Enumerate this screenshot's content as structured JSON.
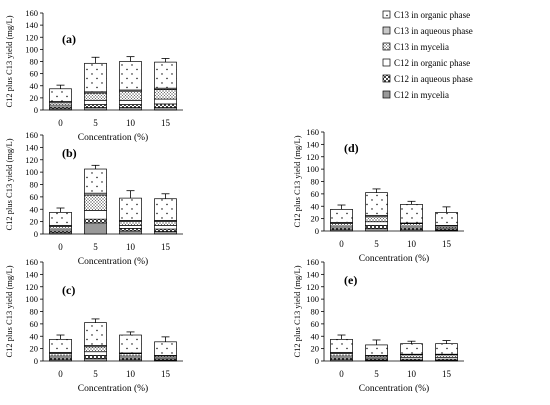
{
  "chart_data": [
    {
      "type": "bar",
      "stacked": true,
      "panel_label": "(a)",
      "categories": [
        "0",
        "5",
        "10",
        "15"
      ],
      "ylim": [
        0,
        160
      ],
      "yticks": [
        0,
        20,
        40,
        60,
        80,
        100,
        120,
        140,
        160
      ],
      "ylabel": "C12 plus C13 yield (mg/L)",
      "xlabel": "Concentration (%)",
      "series": [
        {
          "name": "C12 in mycelia",
          "values": [
            2,
            4,
            4,
            4
          ]
        },
        {
          "name": "C12 in aqueous phase",
          "values": [
            3,
            5,
            5,
            6
          ]
        },
        {
          "name": "C12 in organic phase",
          "values": [
            3,
            7,
            7,
            8
          ]
        },
        {
          "name": "C13 in mycelia",
          "values": [
            4,
            12,
            15,
            16
          ]
        },
        {
          "name": "C13 in aqueous phase",
          "values": [
            2,
            2,
            2,
            2
          ]
        },
        {
          "name": "C13 in organic phase",
          "values": [
            21,
            47,
            47,
            43
          ]
        }
      ],
      "errors": [
        6,
        10,
        8,
        6
      ],
      "legend": "top-right"
    },
    {
      "type": "bar",
      "stacked": true,
      "panel_label": "(b)",
      "categories": [
        "0",
        "5",
        "10",
        "15"
      ],
      "ylim": [
        0,
        160
      ],
      "yticks": [
        0,
        20,
        40,
        60,
        80,
        100,
        120,
        140,
        160
      ],
      "ylabel": "C12 plus C13 yield (mg/L)",
      "xlabel": "Concentration (%)",
      "series": [
        {
          "name": "C12 in mycelia",
          "values": [
            2,
            18,
            5,
            4
          ]
        },
        {
          "name": "C12 in aqueous phase",
          "values": [
            3,
            6,
            4,
            4
          ]
        },
        {
          "name": "C12 in organic phase",
          "values": [
            3,
            14,
            5,
            6
          ]
        },
        {
          "name": "C13 in mycelia",
          "values": [
            4,
            25,
            6,
            6
          ]
        },
        {
          "name": "C13 in aqueous phase",
          "values": [
            2,
            3,
            2,
            2
          ]
        },
        {
          "name": "C13 in organic phase",
          "values": [
            21,
            39,
            36,
            35
          ]
        }
      ],
      "errors": [
        7,
        6,
        12,
        8
      ]
    },
    {
      "type": "bar",
      "stacked": true,
      "panel_label": "(c)",
      "categories": [
        "0",
        "5",
        "10",
        "15"
      ],
      "ylim": [
        0,
        160
      ],
      "yticks": [
        0,
        20,
        40,
        60,
        80,
        100,
        120,
        140,
        160
      ],
      "ylabel": "C12 plus C13 yield (mg/L)",
      "xlabel": "Concentration (%)",
      "series": [
        {
          "name": "C12 in mycelia",
          "values": [
            2,
            4,
            2,
            1
          ]
        },
        {
          "name": "C12 in aqueous phase",
          "values": [
            3,
            5,
            3,
            2
          ]
        },
        {
          "name": "C12 in organic phase",
          "values": [
            3,
            6,
            3,
            2
          ]
        },
        {
          "name": "C13 in mycelia",
          "values": [
            4,
            8,
            4,
            3
          ]
        },
        {
          "name": "C13 in aqueous phase",
          "values": [
            2,
            2,
            1,
            1
          ]
        },
        {
          "name": "C13 in organic phase",
          "values": [
            21,
            37,
            29,
            22
          ]
        }
      ],
      "errors": [
        7,
        6,
        5,
        8
      ]
    },
    {
      "type": "bar",
      "stacked": true,
      "panel_label": "(d)",
      "categories": [
        "0",
        "5",
        "10",
        "15"
      ],
      "ylim": [
        0,
        160
      ],
      "yticks": [
        0,
        20,
        40,
        60,
        80,
        100,
        120,
        140,
        160
      ],
      "ylabel": "C12 plus C13 yield (mg/L)",
      "xlabel": "Concentration (%)",
      "series": [
        {
          "name": "C12 in mycelia",
          "values": [
            2,
            4,
            2,
            1
          ]
        },
        {
          "name": "C12 in aqueous phase",
          "values": [
            3,
            5,
            3,
            2
          ]
        },
        {
          "name": "C12 in organic phase",
          "values": [
            3,
            6,
            3,
            2
          ]
        },
        {
          "name": "C13 in mycelia",
          "values": [
            4,
            8,
            4,
            3
          ]
        },
        {
          "name": "C13 in aqueous phase",
          "values": [
            2,
            2,
            1,
            1
          ]
        },
        {
          "name": "C13 in organic phase",
          "values": [
            21,
            37,
            30,
            21
          ]
        }
      ],
      "errors": [
        7,
        6,
        5,
        9
      ]
    },
    {
      "type": "bar",
      "stacked": true,
      "panel_label": "(e)",
      "categories": [
        "0",
        "5",
        "10",
        "15"
      ],
      "ylim": [
        0,
        160
      ],
      "yticks": [
        0,
        20,
        40,
        60,
        80,
        100,
        120,
        140,
        160
      ],
      "ylabel": "C12 plus C13 yield (mg/L)",
      "xlabel": "Concentration (%)",
      "series": [
        {
          "name": "C12 in mycelia",
          "values": [
            2,
            1,
            1,
            1
          ]
        },
        {
          "name": "C12 in aqueous phase",
          "values": [
            3,
            2,
            2,
            2
          ]
        },
        {
          "name": "C12 in organic phase",
          "values": [
            3,
            2,
            3,
            3
          ]
        },
        {
          "name": "C13 in mycelia",
          "values": [
            4,
            3,
            4,
            4
          ]
        },
        {
          "name": "C13 in aqueous phase",
          "values": [
            2,
            1,
            1,
            1
          ]
        },
        {
          "name": "C13 in organic phase",
          "values": [
            21,
            17,
            17,
            17
          ]
        }
      ],
      "errors": [
        7,
        8,
        4,
        5
      ]
    }
  ],
  "series_colors": {
    "C12 in mycelia": "#999999",
    "C12 in aqueous phase": "#bdbdbd",
    "C12 in organic phase": "#ffffff",
    "C13 in mycelia": "#d6d6d6",
    "C13 in aqueous phase": "#c8c8c8",
    "C13 in organic phase": "#ffffff"
  },
  "series_fills": {
    "C12 in mycelia": "solid",
    "C12 in aqueous phase": "checker",
    "C12 in organic phase": "blank",
    "C13 in mycelia": "dots-dense",
    "C13 in aqueous phase": "solid-light",
    "C13 in organic phase": "dots-sparse"
  }
}
